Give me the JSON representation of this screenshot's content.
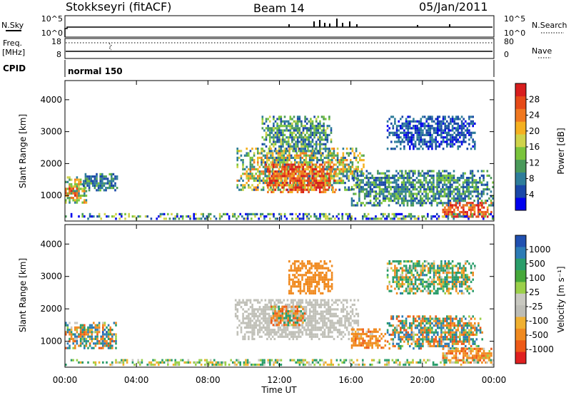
{
  "header": {
    "station": "Stokkseyri (fitACF)",
    "beam": "Beam 14",
    "date": "05/Jan/2011"
  },
  "top_panels": {
    "nsky": {
      "label": "N.Sky",
      "tick_top": "10^5",
      "tick_bottom": "10^0",
      "right_tick_top": "10^5",
      "right_tick_bottom": "10^0",
      "right_label": "N.Search"
    },
    "freq": {
      "label_line1": "Freq.",
      "label_line2": "[MHz]",
      "tick_top": "18",
      "tick_bottom": "8",
      "right_tick_top": "80",
      "right_tick_bottom": "0",
      "right_label": "Nave"
    },
    "cpid": {
      "label": "CPID",
      "value": "normal 150"
    }
  },
  "colors": {
    "power_scale": [
      "#0000ee",
      "#1a48a8",
      "#2e7d9a",
      "#4a9a5a",
      "#7ac43c",
      "#cfd34a",
      "#f5b020",
      "#f07820",
      "#e64a18",
      "#d81e1e"
    ],
    "velocity_scale": [
      "#2050b0",
      "#2c7bb6",
      "#2a9d6a",
      "#46a83a",
      "#9bd04a",
      "#c8c8c0",
      "#bdbdb6",
      "#f0b030",
      "#f08a20",
      "#ee5a18",
      "#e02020"
    ],
    "ground_scatter": "#c0c0b8"
  },
  "chart_data": [
    {
      "type": "heatmap",
      "title": "",
      "xlabel": "Time UT",
      "ylabel": "Slant Range [km]",
      "x_ticks": [
        "00:00",
        "04:00",
        "08:00",
        "12:00",
        "16:00",
        "20:00",
        "00:00"
      ],
      "xlim_hours": [
        0,
        24
      ],
      "y_ticks": [
        "1000",
        "2000",
        "3000",
        "4000"
      ],
      "ylim": [
        200,
        4600
      ],
      "colorbar": {
        "label": "Power [dB]",
        "ticks": [
          "4",
          "8",
          "12",
          "16",
          "20",
          "24",
          "28"
        ],
        "range": [
          0,
          30
        ]
      },
      "regions": [
        {
          "t": [
            0.0,
            1.3
          ],
          "r": [
            700,
            1600
          ],
          "value": 15,
          "spread": 8
        },
        {
          "t": [
            1.0,
            3.0
          ],
          "r": [
            1100,
            1700
          ],
          "value": 8,
          "spread": 5
        },
        {
          "t": [
            0.0,
            0.8
          ],
          "r": [
            850,
            1250
          ],
          "value": 25,
          "spread": 5
        },
        {
          "t": [
            9.6,
            16.8
          ],
          "r": [
            1100,
            2500
          ],
          "value": 14,
          "spread": 9
        },
        {
          "t": [
            11.2,
            15.2
          ],
          "r": [
            1000,
            2000
          ],
          "value": 25,
          "spread": 6
        },
        {
          "t": [
            11.0,
            15.0
          ],
          "r": [
            2300,
            3500
          ],
          "value": 10,
          "spread": 7
        },
        {
          "t": [
            16.0,
            24.0
          ],
          "r": [
            600,
            1800
          ],
          "value": 9,
          "spread": 6
        },
        {
          "t": [
            18.0,
            23.0
          ],
          "r": [
            2400,
            3500
          ],
          "value": 5,
          "spread": 4
        },
        {
          "t": [
            21.0,
            24.0
          ],
          "r": [
            250,
            800
          ],
          "value": 25,
          "spread": 5
        },
        {
          "t": [
            0.0,
            24.0
          ],
          "r": [
            200,
            450
          ],
          "value": 8,
          "spread": 10
        }
      ]
    },
    {
      "type": "heatmap",
      "title": "",
      "xlabel": "Time UT",
      "ylabel": "Slant Range [km]",
      "x_ticks": [
        "00:00",
        "04:00",
        "08:00",
        "12:00",
        "16:00",
        "20:00",
        "00:00"
      ],
      "xlim_hours": [
        0,
        24
      ],
      "y_ticks": [
        "1000",
        "2000",
        "3000",
        "4000"
      ],
      "ylim": [
        200,
        4600
      ],
      "colorbar": {
        "label": "Velocity [m s⁻¹]",
        "ticks": [
          "1000",
          "500",
          "100",
          "25",
          "-25",
          "-100",
          "-500",
          "-1000"
        ],
        "range": [
          -1000,
          1000
        ]
      },
      "regions": [
        {
          "t": [
            0.0,
            3.0
          ],
          "r": [
            700,
            1600
          ],
          "value": 150,
          "spread": 900,
          "ground": false
        },
        {
          "t": [
            9.5,
            16.5
          ],
          "r": [
            1000,
            2300
          ],
          "value": 0,
          "spread": 10,
          "ground": true
        },
        {
          "t": [
            11.5,
            13.5
          ],
          "r": [
            1400,
            2100
          ],
          "value": -200,
          "spread": 600,
          "ground": false
        },
        {
          "t": [
            12.5,
            15.0
          ],
          "r": [
            2400,
            3500
          ],
          "value": -300,
          "spread": 200,
          "ground": false
        },
        {
          "t": [
            16.0,
            18.0
          ],
          "r": [
            700,
            1400
          ],
          "value": -300,
          "spread": 300,
          "ground": false
        },
        {
          "t": [
            18.0,
            23.5
          ],
          "r": [
            700,
            1800
          ],
          "value": 100,
          "spread": 800,
          "ground": false
        },
        {
          "t": [
            21.0,
            24.0
          ],
          "r": [
            250,
            800
          ],
          "value": -300,
          "spread": 400,
          "ground": false
        },
        {
          "t": [
            18.0,
            23.0
          ],
          "r": [
            2400,
            3500
          ],
          "value": 150,
          "spread": 400,
          "ground": false
        },
        {
          "t": [
            0.0,
            24.0
          ],
          "r": [
            200,
            450
          ],
          "value": 50,
          "spread": 150,
          "ground": false
        }
      ]
    }
  ]
}
